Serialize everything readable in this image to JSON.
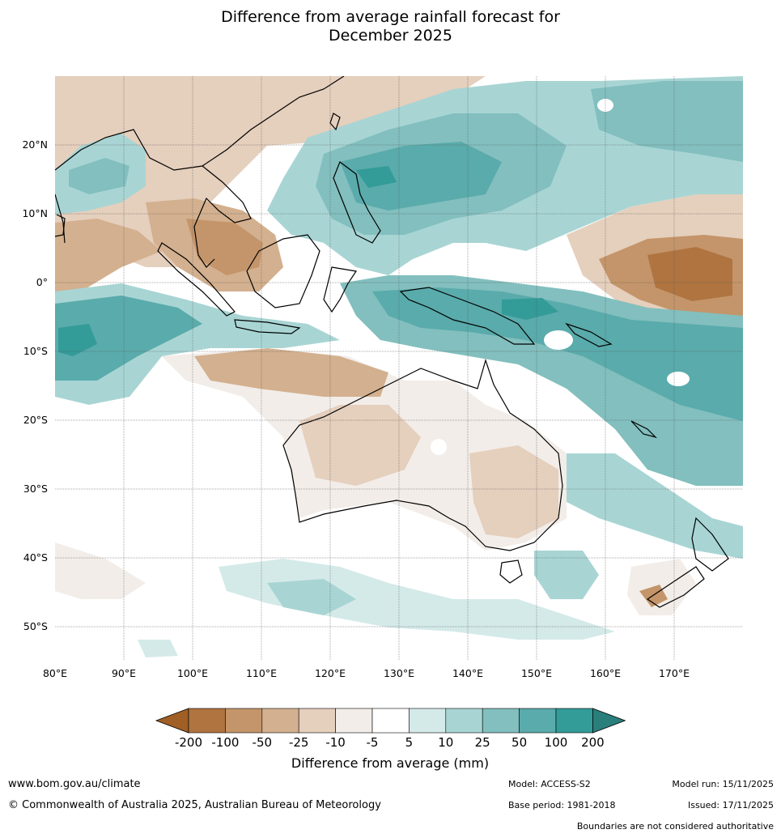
{
  "title": {
    "line1": "Difference from average rainfall forecast for",
    "line2": "December 2025"
  },
  "map": {
    "lon_ticks": [
      "80°E",
      "90°E",
      "100°E",
      "110°E",
      "120°E",
      "130°E",
      "140°E",
      "150°E",
      "160°E",
      "170°E"
    ],
    "lat_ticks": [
      "20°N",
      "10°N",
      "0°",
      "10°S",
      "20°S",
      "30°S",
      "40°S",
      "50°S"
    ]
  },
  "legend": {
    "title": "Difference from average (mm)",
    "labels": [
      "-200",
      "-100",
      "-50",
      "-25",
      "-10",
      "-5",
      "5",
      "10",
      "25",
      "50",
      "100",
      "200"
    ],
    "colors": [
      "#a05f25",
      "#af7440",
      "#c4956a",
      "#d3b08f",
      "#e5cfbd",
      "#f2ede8",
      "#ffffff",
      "#d4eae9",
      "#a8d5d4",
      "#82bfbe",
      "#5aabab",
      "#339b98",
      "#2a7f7c"
    ]
  },
  "footer": {
    "website": "www.bom.gov.au/climate",
    "copyright": "© Commonwealth of Australia 2025, Australian Bureau of Meteorology",
    "model": "Model: ACCESS-S2",
    "base_period": "Base period: 1981-2018",
    "model_run": "Model run: 15/11/2025",
    "issued": "Issued: 17/11/2025",
    "disclaimer": "Boundaries are not considered authoritative"
  }
}
